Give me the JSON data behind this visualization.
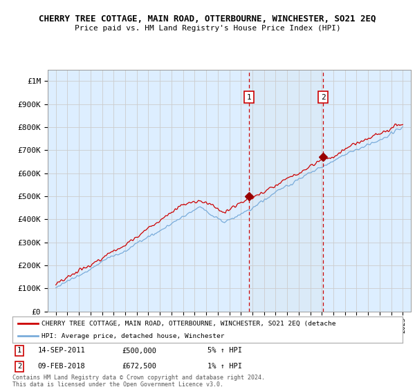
{
  "title": "CHERRY TREE COTTAGE, MAIN ROAD, OTTERBOURNE, WINCHESTER, SO21 2EQ",
  "subtitle": "Price paid vs. HM Land Registry's House Price Index (HPI)",
  "background_color": "#ffffff",
  "plot_bg_color": "#ddeeff",
  "highlight_color": "#cce0f5",
  "ylim": [
    0,
    1050000
  ],
  "yticks": [
    0,
    100000,
    200000,
    300000,
    400000,
    500000,
    600000,
    700000,
    800000,
    900000,
    1000000
  ],
  "ytick_labels": [
    "£0",
    "£100K",
    "£200K",
    "£300K",
    "£400K",
    "£500K",
    "£600K",
    "£700K",
    "£800K",
    "£900K",
    "£1M"
  ],
  "sale1_date": "14-SEP-2011",
  "sale1_price": 500000,
  "sale1_hpi": "5% ↑ HPI",
  "sale1_x": 2011.71,
  "sale2_date": "09-FEB-2018",
  "sale2_price": 672500,
  "sale2_hpi": "1% ↑ HPI",
  "sale2_x": 2018.11,
  "legend_line1": "CHERRY TREE COTTAGE, MAIN ROAD, OTTERBOURNE, WINCHESTER, SO21 2EQ (detache",
  "legend_line2": "HPI: Average price, detached house, Winchester",
  "footnote": "Contains HM Land Registry data © Crown copyright and database right 2024.\nThis data is licensed under the Open Government Licence v3.0.",
  "line1_color": "#cc0000",
  "line2_color": "#7aacda",
  "vline_color": "#cc0000",
  "marker_color": "#990000",
  "grid_color": "#cccccc"
}
